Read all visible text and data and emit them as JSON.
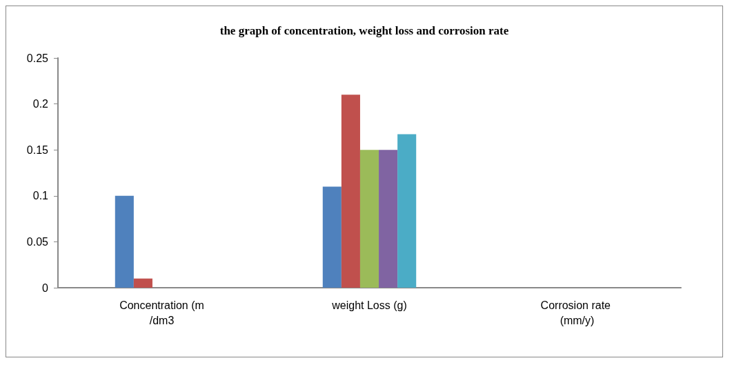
{
  "chart_data": {
    "type": "bar",
    "title": "the graph of concentration, weight loss and corrosion rate",
    "categories": [
      "Concentration (m/dm3",
      "weight Loss (g)",
      "Corrosion rate (mm/y)"
    ],
    "series": [
      {
        "color": "#4f81bd",
        "values": [
          0.1,
          0.11,
          0
        ]
      },
      {
        "color": "#c0504d",
        "values": [
          0.01,
          0.21,
          0
        ]
      },
      {
        "color": "#9bbb59",
        "values": [
          0,
          0.15,
          0
        ]
      },
      {
        "color": "#8064a2",
        "values": [
          0,
          0.15,
          0
        ]
      },
      {
        "color": "#4bacc6",
        "values": [
          0,
          0.167,
          0
        ]
      }
    ],
    "ylim": [
      0,
      0.25
    ],
    "yticks": [
      0,
      0.05,
      0.1,
      0.15,
      0.2,
      0.25
    ],
    "grid": false
  }
}
